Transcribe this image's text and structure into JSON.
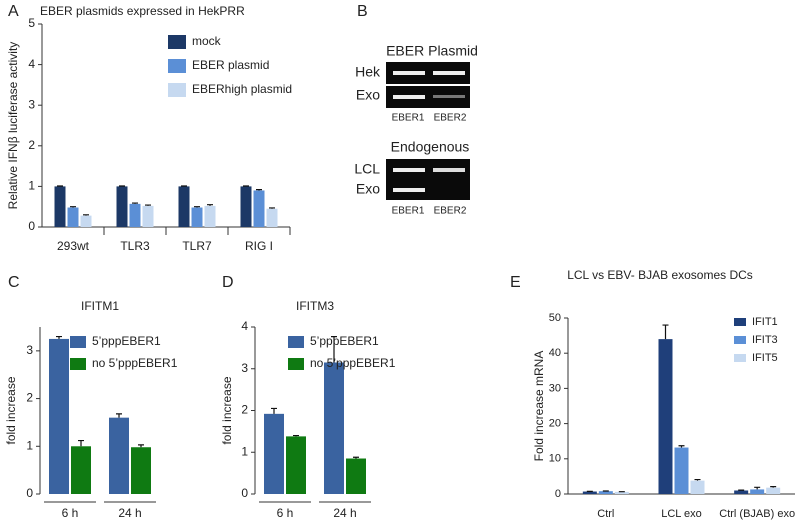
{
  "chart_data": [
    {
      "type": "bar",
      "panel": "A",
      "title": "EBER plasmids expressed in HekPRR",
      "ylabel": "Relative IFNβ luciferase activity",
      "categories": [
        "293wt",
        "TLR3",
        "TLR7",
        "RIG I"
      ],
      "series": [
        {
          "name": "mock",
          "color": "#1c3866",
          "values": [
            1,
            1,
            1,
            1
          ],
          "errors": [
            0.01,
            0.01,
            0.01,
            0.01
          ]
        },
        {
          "name": "EBER plasmid",
          "color": "#5b8fd6",
          "values": [
            0.48,
            0.57,
            0.48,
            0.9
          ],
          "errors": [
            0.02,
            0.02,
            0.02,
            0.02
          ]
        },
        {
          "name": "EBERhigh plasmid",
          "color": "#c6d9f0",
          "values": [
            0.28,
            0.52,
            0.52,
            0.45
          ],
          "errors": [
            0.02,
            0.02,
            0.03,
            0.02
          ]
        }
      ],
      "ylim": [
        0,
        5
      ],
      "yticks": [
        0,
        1,
        2,
        3,
        4,
        5
      ],
      "legend": "upper right"
    },
    {
      "type": "bar",
      "panel": "C",
      "title": "IFITM1",
      "ylabel": "fold increase",
      "categories": [
        "6 h",
        "24 h"
      ],
      "series": [
        {
          "name": "5’pppEBER1",
          "color": "#3a63a0",
          "values": [
            3.25,
            1.6
          ],
          "errors": [
            0.05,
            0.08
          ]
        },
        {
          "name": "no 5’pppEBER1",
          "color": "#0f7a12",
          "values": [
            1.0,
            0.98
          ],
          "errors": [
            0.12,
            0.05
          ]
        }
      ],
      "ylim": [
        0,
        3.5
      ],
      "yticks": [
        0,
        1,
        2,
        3
      ],
      "legend": "upper right"
    },
    {
      "type": "bar",
      "panel": "D",
      "title": "IFITM3",
      "ylabel": "fold increase",
      "categories": [
        "6 h",
        "24 h"
      ],
      "series": [
        {
          "name": "5’pppEBER1",
          "color": "#3a63a0",
          "values": [
            1.92,
            3.15
          ],
          "errors": [
            0.13,
            0.62
          ]
        },
        {
          "name": "no 5’pppEBER1",
          "color": "#0f7a12",
          "values": [
            1.38,
            0.85
          ],
          "errors": [
            0.02,
            0.03
          ]
        }
      ],
      "ylim": [
        0,
        4
      ],
      "yticks": [
        0,
        1,
        2,
        3,
        4
      ],
      "legend": "upper right"
    },
    {
      "type": "bar",
      "panel": "E",
      "title": "LCL vs EBV- BJAB exosomes DCs",
      "ylabel": "Fold increase mRNA",
      "categories": [
        "Ctrl",
        "LCL exo",
        "Ctrl (BJAB) exo"
      ],
      "category_colors": [
        "#222222",
        "#1f4fa0",
        "#138a13"
      ],
      "series": [
        {
          "name": "IFIT1",
          "color": "#1f3f7a",
          "values": [
            0.7,
            44,
            1.0
          ],
          "errors": [
            0.05,
            4,
            0.1
          ]
        },
        {
          "name": "IFIT3",
          "color": "#5b8fd6",
          "values": [
            0.8,
            13.2,
            1.3
          ],
          "errors": [
            0.05,
            0.5,
            0.6
          ]
        },
        {
          "name": "IFIT5",
          "color": "#c6d9f0",
          "values": [
            0.6,
            3.8,
            1.8
          ],
          "errors": [
            0.05,
            0.3,
            0.3
          ]
        }
      ],
      "ylim": [
        0,
        50
      ],
      "yticks": [
        0,
        10,
        20,
        30,
        40,
        50
      ],
      "legend": "upper right"
    }
  ],
  "gel": {
    "panel": "B",
    "sections": [
      {
        "title": "EBER Plasmid",
        "rows": [
          "Hek",
          "Exo"
        ],
        "lanes": [
          "EBER1",
          "EBER2"
        ]
      },
      {
        "title": "Endogenous",
        "rows": [
          "LCL",
          "Exo"
        ],
        "lanes": [
          "EBER1",
          "EBER2"
        ]
      }
    ]
  }
}
